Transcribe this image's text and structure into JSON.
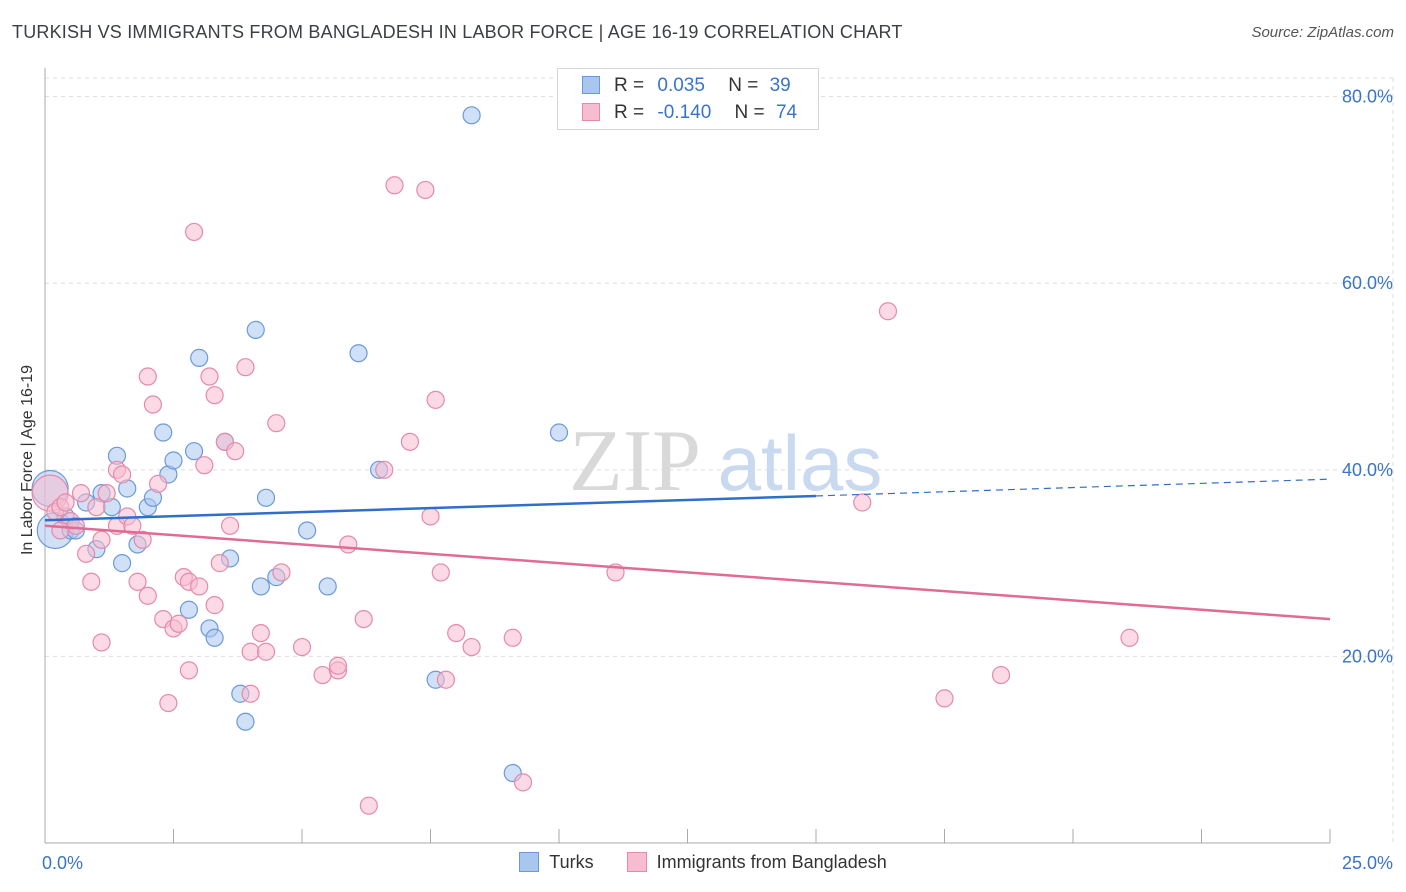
{
  "header": {
    "title": "TURKISH VS IMMIGRANTS FROM BANGLADESH IN LABOR FORCE | AGE 16-19 CORRELATION CHART",
    "source": "Source: ZipAtlas.com"
  },
  "watermark": {
    "part1": "ZIP",
    "part2": "atlas"
  },
  "legend_top": {
    "turks": {
      "r_label": "R =",
      "r_value": "0.035",
      "n_label": "N =",
      "n_value": "39"
    },
    "bangladesh": {
      "r_label": "R =",
      "r_value": "-0.140",
      "n_label": "N =",
      "n_value": "74"
    }
  },
  "legend_bottom": {
    "turks": "Turks",
    "bangladesh": "Immigrants from Bangladesh"
  },
  "colors": {
    "turks_fill": "#a9c7ee",
    "turks_stroke": "#6c9ad8",
    "turks_line": "#2f6fcc",
    "bang_fill": "#f7bcd0",
    "bang_stroke": "#e58aaa",
    "bang_line": "#e06b94",
    "axis_text": "#3a74c9",
    "grid": "#dddddd"
  },
  "chart_data": {
    "type": "scatter",
    "title": "TURKISH VS IMMIGRANTS FROM BANGLADESH IN LABOR FORCE | AGE 16-19 CORRELATION CHART",
    "xlabel": "",
    "ylabel": "In Labor Force | Age 16-19",
    "xlim": [
      0,
      25
    ],
    "ylim": [
      0,
      82
    ],
    "x_tick_labels": [
      {
        "value": 0,
        "label": "0.0%"
      },
      {
        "value": 25,
        "label": "25.0%"
      }
    ],
    "y_tick_labels": [
      {
        "value": 20,
        "label": "20.0%"
      },
      {
        "value": 40,
        "label": "40.0%"
      },
      {
        "value": 60,
        "label": "60.0%"
      },
      {
        "value": 80,
        "label": "80.0%"
      }
    ],
    "grid": true,
    "legend_position": "top-center",
    "series": [
      {
        "name": "Turks",
        "trend": {
          "x": [
            0,
            15
          ],
          "y": [
            34.6,
            37.2
          ],
          "dashed_to": [
            25,
            39.0
          ]
        },
        "points": [
          {
            "x": 0.1,
            "y": 38.0,
            "s": "large"
          },
          {
            "x": 0.2,
            "y": 33.5,
            "s": "large"
          },
          {
            "x": 0.4,
            "y": 35.0
          },
          {
            "x": 0.5,
            "y": 33.5
          },
          {
            "x": 0.6,
            "y": 33.5
          },
          {
            "x": 0.8,
            "y": 36.5
          },
          {
            "x": 1.0,
            "y": 31.5
          },
          {
            "x": 1.1,
            "y": 37.5
          },
          {
            "x": 1.3,
            "y": 36.0
          },
          {
            "x": 1.4,
            "y": 41.5
          },
          {
            "x": 1.6,
            "y": 38.0
          },
          {
            "x": 1.5,
            "y": 30.0
          },
          {
            "x": 1.8,
            "y": 32.0
          },
          {
            "x": 2.0,
            "y": 36.0
          },
          {
            "x": 2.1,
            "y": 37.0
          },
          {
            "x": 2.3,
            "y": 44.0
          },
          {
            "x": 2.4,
            "y": 39.5
          },
          {
            "x": 2.5,
            "y": 41.0
          },
          {
            "x": 2.8,
            "y": 25.0
          },
          {
            "x": 2.9,
            "y": 42.0
          },
          {
            "x": 3.0,
            "y": 52.0
          },
          {
            "x": 3.2,
            "y": 23.0
          },
          {
            "x": 3.3,
            "y": 22.0
          },
          {
            "x": 3.5,
            "y": 43.0
          },
          {
            "x": 3.6,
            "y": 30.5
          },
          {
            "x": 3.8,
            "y": 16.0
          },
          {
            "x": 3.9,
            "y": 13.0
          },
          {
            "x": 4.1,
            "y": 55.0
          },
          {
            "x": 4.2,
            "y": 27.5
          },
          {
            "x": 4.3,
            "y": 37.0
          },
          {
            "x": 4.5,
            "y": 28.5
          },
          {
            "x": 5.1,
            "y": 33.5
          },
          {
            "x": 5.5,
            "y": 27.5
          },
          {
            "x": 6.1,
            "y": 52.5
          },
          {
            "x": 6.5,
            "y": 40.0
          },
          {
            "x": 7.6,
            "y": 17.5
          },
          {
            "x": 8.3,
            "y": 78.0
          },
          {
            "x": 9.1,
            "y": 7.5
          },
          {
            "x": 10.0,
            "y": 44.0
          }
        ]
      },
      {
        "name": "Immigrants from Bangladesh",
        "trend": {
          "x": [
            0,
            25
          ],
          "y": [
            34.0,
            24.0
          ]
        },
        "points": [
          {
            "x": 0.1,
            "y": 37.5,
            "s": "large"
          },
          {
            "x": 0.2,
            "y": 35.5
          },
          {
            "x": 0.3,
            "y": 36.0
          },
          {
            "x": 0.4,
            "y": 36.5
          },
          {
            "x": 0.5,
            "y": 34.5
          },
          {
            "x": 0.6,
            "y": 34.0
          },
          {
            "x": 0.7,
            "y": 37.5
          },
          {
            "x": 0.8,
            "y": 31.0
          },
          {
            "x": 0.9,
            "y": 28.0
          },
          {
            "x": 1.0,
            "y": 36.0
          },
          {
            "x": 1.1,
            "y": 32.5
          },
          {
            "x": 1.2,
            "y": 37.5
          },
          {
            "x": 1.1,
            "y": 21.5
          },
          {
            "x": 1.4,
            "y": 34.0
          },
          {
            "x": 1.4,
            "y": 40.0
          },
          {
            "x": 1.5,
            "y": 39.5
          },
          {
            "x": 1.6,
            "y": 35.0
          },
          {
            "x": 1.7,
            "y": 34.0
          },
          {
            "x": 1.8,
            "y": 28.0
          },
          {
            "x": 1.9,
            "y": 32.5
          },
          {
            "x": 2.0,
            "y": 50.0
          },
          {
            "x": 2.0,
            "y": 26.5
          },
          {
            "x": 2.1,
            "y": 47.0
          },
          {
            "x": 2.2,
            "y": 38.5
          },
          {
            "x": 2.3,
            "y": 24.0
          },
          {
            "x": 2.4,
            "y": 15.0
          },
          {
            "x": 2.5,
            "y": 23.0
          },
          {
            "x": 2.6,
            "y": 23.5
          },
          {
            "x": 2.7,
            "y": 28.5
          },
          {
            "x": 2.8,
            "y": 28.0
          },
          {
            "x": 2.8,
            "y": 18.5
          },
          {
            "x": 2.9,
            "y": 65.5
          },
          {
            "x": 3.0,
            "y": 27.5
          },
          {
            "x": 3.1,
            "y": 40.5
          },
          {
            "x": 3.2,
            "y": 50.0
          },
          {
            "x": 3.3,
            "y": 48.0
          },
          {
            "x": 3.3,
            "y": 25.5
          },
          {
            "x": 3.4,
            "y": 30.0
          },
          {
            "x": 3.5,
            "y": 43.0
          },
          {
            "x": 3.6,
            "y": 34.0
          },
          {
            "x": 3.7,
            "y": 42.0
          },
          {
            "x": 3.9,
            "y": 51.0
          },
          {
            "x": 4.0,
            "y": 16.0
          },
          {
            "x": 4.0,
            "y": 20.5
          },
          {
            "x": 4.2,
            "y": 22.5
          },
          {
            "x": 4.3,
            "y": 20.5
          },
          {
            "x": 4.5,
            "y": 45.0
          },
          {
            "x": 4.6,
            "y": 29.0
          },
          {
            "x": 5.0,
            "y": 21.0
          },
          {
            "x": 5.4,
            "y": 18.0
          },
          {
            "x": 5.7,
            "y": 18.5
          },
          {
            "x": 5.7,
            "y": 19.0
          },
          {
            "x": 5.9,
            "y": 32.0
          },
          {
            "x": 6.2,
            "y": 24.0
          },
          {
            "x": 6.3,
            "y": 4.0
          },
          {
            "x": 6.6,
            "y": 40.0
          },
          {
            "x": 6.8,
            "y": 70.5
          },
          {
            "x": 7.1,
            "y": 43.0
          },
          {
            "x": 7.4,
            "y": 70.0
          },
          {
            "x": 7.5,
            "y": 35.0
          },
          {
            "x": 7.6,
            "y": 47.5
          },
          {
            "x": 7.7,
            "y": 29.0
          },
          {
            "x": 7.8,
            "y": 17.5
          },
          {
            "x": 8.0,
            "y": 22.5
          },
          {
            "x": 8.3,
            "y": 21.0
          },
          {
            "x": 9.1,
            "y": 22.0
          },
          {
            "x": 9.3,
            "y": 6.5
          },
          {
            "x": 11.1,
            "y": 29.0
          },
          {
            "x": 15.9,
            "y": 36.5
          },
          {
            "x": 16.4,
            "y": 57.0
          },
          {
            "x": 17.5,
            "y": 15.5
          },
          {
            "x": 18.6,
            "y": 18.0
          },
          {
            "x": 21.1,
            "y": 22.0
          },
          {
            "x": 0.3,
            "y": 33.5
          }
        ]
      }
    ]
  }
}
